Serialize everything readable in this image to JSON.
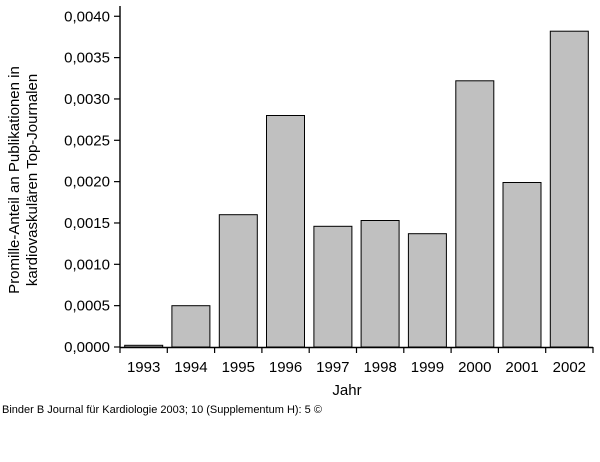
{
  "chart_data": {
    "type": "bar",
    "categories": [
      "1993",
      "1994",
      "1995",
      "1996",
      "1997",
      "1998",
      "1999",
      "2000",
      "2001",
      "2002"
    ],
    "values": [
      2e-05,
      0.0005,
      0.0016,
      0.0028,
      0.00146,
      0.00153,
      0.00137,
      0.00322,
      0.00199,
      0.00382
    ],
    "title": "",
    "xlabel": "Jahr",
    "ylabel_lines": [
      "Promille-Anteil an Publikationen in",
      "kardiovaskulären Top-Journalen"
    ],
    "ylim": [
      0,
      0.0041
    ],
    "yticks": [
      0.0,
      0.0005,
      0.001,
      0.0015,
      0.002,
      0.0025,
      0.003,
      0.0035,
      0.004
    ],
    "ytick_labels": [
      "0,0000",
      "0,0005",
      "0,0010",
      "0,0015",
      "0,0020",
      "0,0025",
      "0,0030",
      "0,0035",
      "0,0040"
    ],
    "grid": false,
    "bar_color": "#c0c0c0",
    "bar_edge_color": "#000000"
  },
  "footer": {
    "citation": "Binder B Journal für Kardiologie 2003; 10 (Supplementum H): 5 ©"
  }
}
